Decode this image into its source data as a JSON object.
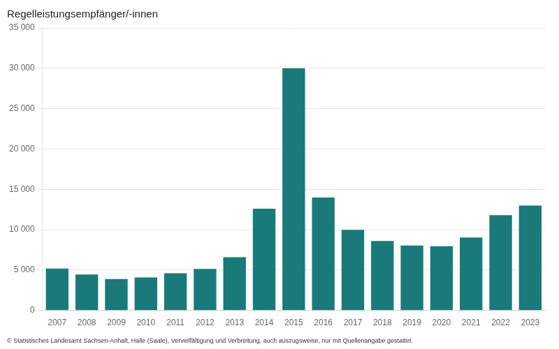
{
  "chart_data": {
    "type": "bar",
    "title": "Regelleistungsempfänger/-innen",
    "annotations": [
      "© Statistisches Landesamt Sachsen-Anhalt, Halle (Saale), Vervielfältigung und Verbreitung, auch auszugsweise, nur mit Quellenangabe gestattet."
    ],
    "categories": [
      "2007",
      "2008",
      "2009",
      "2010",
      "2011",
      "2012",
      "2013",
      "2014",
      "2015",
      "2016",
      "2017",
      "2018",
      "2019",
      "2020",
      "2021",
      "2022",
      "2023"
    ],
    "values": [
      5200,
      4450,
      3900,
      4100,
      4600,
      5150,
      6600,
      12600,
      30000,
      14000,
      10000,
      8600,
      8050,
      7950,
      9050,
      11800,
      13000
    ],
    "color": "#1a7a7a",
    "ylim": [
      0,
      35000
    ],
    "yticks": [
      0,
      {
        "value": 5000,
        "label": "5 000"
      },
      {
        "value": 10000,
        "label": "10 000"
      },
      {
        "value": 15000,
        "label": "15 000"
      },
      {
        "value": 20000,
        "label": "20 000"
      },
      {
        "value": 25000,
        "label": "25 000"
      },
      {
        "value": 30000,
        "label": "30 000"
      },
      {
        "value": 35000,
        "label": "35 000"
      }
    ],
    "grid": true
  }
}
